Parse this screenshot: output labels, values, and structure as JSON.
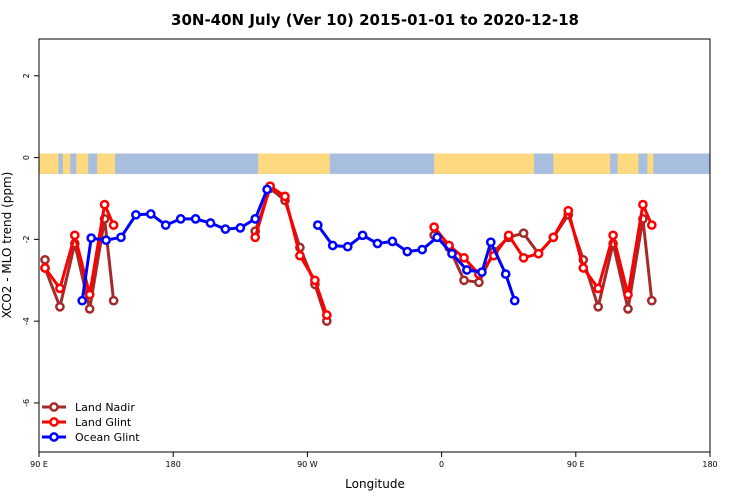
{
  "chart_data": {
    "type": "line",
    "title": "30N-40N July (Ver 10)   2015-01-01 to 2020-12-18",
    "xlabel": "Longitude",
    "ylabel": "XCO2 - MLO trend (ppm)",
    "x_ticks": [
      {
        "lon": -270,
        "label": "90 E"
      },
      {
        "lon": -180,
        "label": "180"
      },
      {
        "lon": -90,
        "label": "90 W"
      },
      {
        "lon": 0,
        "label": "0"
      },
      {
        "lon": 90,
        "label": "90 E"
      },
      {
        "lon": 180,
        "label": "180"
      }
    ],
    "y_ticks": [
      2,
      0,
      -2,
      -4,
      -6
    ],
    "xlim": [
      -270,
      180
    ],
    "ylim": [
      -7.2,
      2.9
    ],
    "grid": false,
    "legend_position": "bottom-left",
    "map_strip": {
      "y_top": 0.1,
      "y_bottom": -0.4,
      "land_color": "#ffd980",
      "ocean_color": "#a7bedf"
    },
    "series": [
      {
        "name": "Land Nadir",
        "color": "#a52a2a",
        "segments": [
          [
            [
              -266,
              -2.5
            ],
            [
              -266,
              -2.7
            ],
            [
              -256,
              -3.65
            ],
            [
              -246,
              -2.1
            ],
            [
              -236,
              -3.7
            ],
            [
              -226,
              -1.5
            ],
            [
              -220,
              -3.5
            ]
          ],
          [
            [
              -125,
              -1.8
            ],
            [
              -115,
              -0.75
            ],
            [
              -105,
              -1.05
            ],
            [
              -95,
              -2.2
            ],
            [
              -85,
              -3.1
            ],
            [
              -77,
              -4.0
            ]
          ],
          [
            [
              -5,
              -1.9
            ],
            [
              5,
              -2.2
            ],
            [
              15,
              -3.0
            ],
            [
              25,
              -3.05
            ],
            [
              35,
              -2.3
            ],
            [
              45,
              -1.95
            ],
            [
              55,
              -1.85
            ],
            [
              65,
              -2.35
            ],
            [
              75,
              -1.95
            ],
            [
              85,
              -1.4
            ],
            [
              95,
              -2.5
            ],
            [
              105,
              -3.65
            ],
            [
              115,
              -2.1
            ],
            [
              125,
              -3.7
            ],
            [
              135,
              -1.5
            ],
            [
              141,
              -3.5
            ]
          ]
        ]
      },
      {
        "name": "Land Glint",
        "color": "#ff0000",
        "segments": [
          [
            [
              -266,
              -2.7
            ],
            [
              -256,
              -3.2
            ],
            [
              -246,
              -1.9
            ],
            [
              -236,
              -3.35
            ],
            [
              -226,
              -1.15
            ],
            [
              -220,
              -1.65
            ]
          ],
          [
            [
              -125,
              -1.95
            ],
            [
              -115,
              -0.7
            ],
            [
              -105,
              -0.95
            ],
            [
              -95,
              -2.4
            ],
            [
              -85,
              -3.0
            ],
            [
              -77,
              -3.85
            ]
          ],
          [
            [
              -5,
              -1.7
            ],
            [
              5,
              -2.15
            ],
            [
              15,
              -2.45
            ],
            [
              25,
              -2.85
            ],
            [
              35,
              -2.4
            ],
            [
              45,
              -1.9
            ],
            [
              55,
              -2.45
            ],
            [
              65,
              -2.35
            ],
            [
              75,
              -1.95
            ],
            [
              85,
              -1.3
            ],
            [
              95,
              -2.7
            ],
            [
              105,
              -3.2
            ],
            [
              115,
              -1.9
            ],
            [
              125,
              -3.35
            ],
            [
              135,
              -1.15
            ],
            [
              141,
              -1.65
            ]
          ]
        ]
      },
      {
        "name": "Ocean Glint",
        "color": "#0000ff",
        "segments": [
          [
            [
              -241,
              -3.5
            ],
            [
              -235,
              -1.97
            ],
            [
              -225,
              -2.02
            ],
            [
              -215,
              -1.95
            ],
            [
              -205,
              -1.4
            ],
            [
              -195,
              -1.38
            ],
            [
              -185,
              -1.65
            ],
            [
              -175,
              -1.5
            ],
            [
              -165,
              -1.5
            ],
            [
              -155,
              -1.6
            ],
            [
              -145,
              -1.75
            ],
            [
              -135,
              -1.72
            ],
            [
              -125,
              -1.5
            ],
            [
              -117,
              -0.78
            ]
          ],
          [
            [
              -83,
              -1.65
            ],
            [
              -73,
              -2.15
            ],
            [
              -63,
              -2.18
            ],
            [
              -53,
              -1.9
            ],
            [
              -43,
              -2.1
            ],
            [
              -33,
              -2.05
            ],
            [
              -23,
              -2.3
            ],
            [
              -13,
              -2.25
            ],
            [
              -3,
              -1.95
            ],
            [
              7,
              -2.35
            ],
            [
              17,
              -2.75
            ],
            [
              27,
              -2.8
            ],
            [
              33,
              -2.07
            ],
            [
              43,
              -2.85
            ],
            [
              49,
              -3.5
            ]
          ]
        ]
      }
    ]
  }
}
